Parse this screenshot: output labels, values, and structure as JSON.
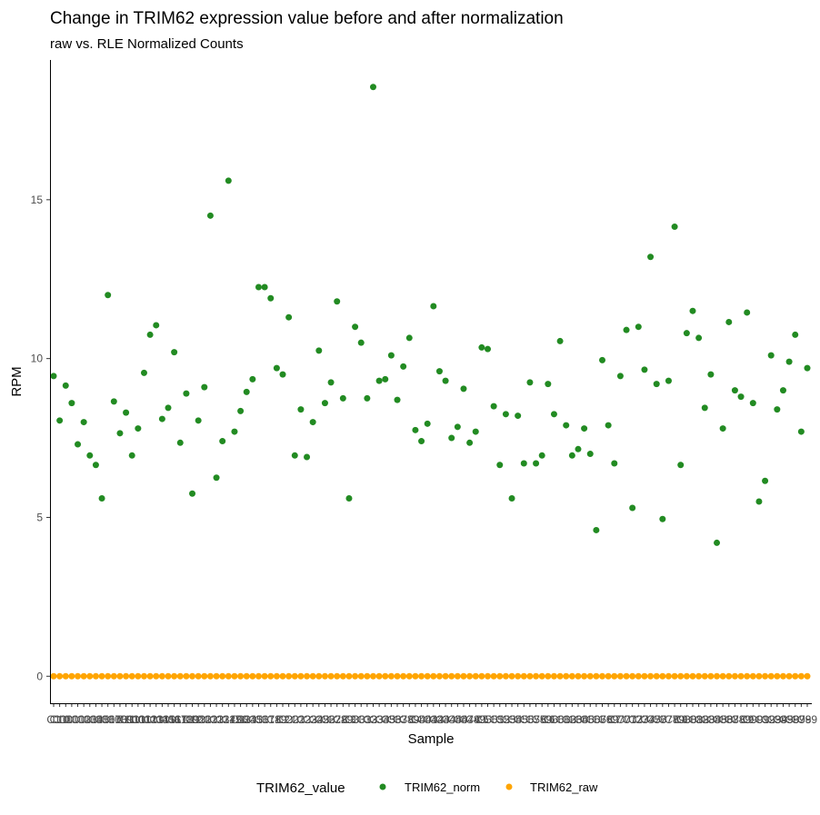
{
  "chart_data": {
    "type": "scatter",
    "title": "Change in TRIM62 expression value before and after normalization",
    "subtitle": "raw vs. RLE Normalized Counts",
    "xlabel": "Sample",
    "ylabel": "RPM",
    "ylim": [
      -0.85,
      19.4
    ],
    "yticks": [
      0,
      5,
      10,
      15
    ],
    "grid": false,
    "legend": {
      "title": "TRIM62_value",
      "position": "bottom"
    },
    "series": [
      {
        "name": "TRIM62_norm",
        "color": "#228B22",
        "values": [
          9.45,
          8.05,
          9.15,
          8.6,
          7.3,
          8.0,
          6.95,
          6.65,
          5.6,
          12.0,
          8.65,
          7.65,
          8.3,
          6.95,
          7.8,
          9.55,
          10.75,
          11.05,
          8.1,
          8.45,
          10.2,
          7.35,
          8.9,
          5.75,
          8.05,
          9.1,
          14.5,
          6.25,
          7.4,
          15.6,
          7.7,
          8.35,
          8.95,
          9.35,
          12.25,
          12.25,
          11.9,
          9.7,
          9.5,
          11.3,
          6.95,
          8.4,
          6.9,
          8.0,
          10.25,
          8.6,
          9.25,
          11.8,
          8.75,
          5.6,
          11.0,
          10.5,
          8.75,
          18.55,
          9.3,
          9.35,
          10.1,
          8.7,
          9.75,
          10.65,
          7.75,
          7.4,
          7.95,
          11.65,
          9.6,
          9.3,
          7.5,
          7.85,
          9.05,
          7.35,
          7.7,
          10.35,
          10.3,
          8.5,
          6.65,
          8.25,
          5.6,
          8.2,
          6.7,
          9.25,
          6.7,
          6.95,
          9.2,
          8.25,
          10.55,
          7.9,
          6.95,
          7.15,
          7.8,
          7.0,
          4.6,
          9.95,
          7.9,
          6.7,
          9.45,
          10.9,
          5.3,
          11.0,
          9.65,
          13.2,
          9.2,
          4.95,
          9.3,
          14.15,
          6.65,
          10.8,
          11.5,
          10.65,
          8.45,
          9.5,
          4.2,
          7.8,
          11.15,
          9.0,
          8.8,
          11.45,
          8.6,
          5.5,
          6.15,
          10.1,
          8.4,
          9.0,
          9.9,
          10.75,
          7.7,
          9.7
        ]
      },
      {
        "name": "TRIM62_raw",
        "color": "#FFA500",
        "values": [
          0,
          0,
          0,
          0,
          0,
          0,
          0,
          0,
          0,
          0,
          0,
          0,
          0,
          0,
          0,
          0,
          0,
          0,
          0,
          0,
          0,
          0,
          0,
          0,
          0,
          0,
          0,
          0,
          0,
          0,
          0,
          0,
          0,
          0,
          0,
          0,
          0,
          0,
          0,
          0,
          0,
          0,
          0,
          0,
          0,
          0,
          0,
          0,
          0,
          0,
          0,
          0,
          0,
          0,
          0,
          0,
          0,
          0,
          0,
          0,
          0,
          0,
          0,
          0,
          0,
          0,
          0,
          0,
          0,
          0,
          0,
          0,
          0,
          0,
          0,
          0,
          0,
          0,
          0,
          0,
          0,
          0,
          0,
          0,
          0,
          0,
          0,
          0,
          0,
          0,
          0,
          0,
          0,
          0,
          0,
          0,
          0,
          0,
          0,
          0,
          0,
          0,
          0,
          0,
          0,
          0,
          0,
          0,
          0,
          0,
          0,
          0,
          0,
          0,
          0,
          0,
          0,
          0,
          0,
          0,
          0,
          0,
          0,
          0,
          0,
          0
        ]
      }
    ],
    "x_tick_labels": [
      "C1",
      "C10",
      "C100",
      "C101",
      "C102",
      "C103",
      "C104",
      "C105",
      "C106",
      "C107",
      "C108",
      "C109",
      "C11",
      "C110",
      "C111",
      "C112",
      "C113",
      "C114",
      "C115",
      "C116",
      "C117",
      "C118",
      "C119",
      "C12",
      "C120",
      "C121",
      "C122",
      "C123",
      "C124",
      "C125",
      "C126",
      "C13",
      "C14",
      "C15",
      "C16",
      "C17",
      "C18",
      "C19",
      "C2",
      "C20",
      "C21",
      "C22",
      "C23",
      "C24",
      "C25",
      "C26",
      "C27",
      "C28",
      "C29",
      "C3",
      "C30",
      "C31",
      "C32",
      "C33",
      "C34",
      "C35",
      "C36",
      "C37",
      "C38",
      "C39",
      "C4",
      "C40",
      "C41",
      "C42",
      "C43",
      "C44",
      "C45",
      "C46",
      "C47",
      "C48",
      "C49",
      "C5",
      "C50",
      "C51",
      "C52",
      "C53",
      "C54",
      "C55",
      "C56",
      "C57",
      "C58",
      "C59",
      "C6",
      "C60",
      "C61",
      "C62",
      "C63",
      "C64",
      "C65",
      "C66",
      "C67",
      "C68",
      "C69",
      "C7",
      "C70",
      "C71",
      "C72",
      "C73",
      "C74",
      "C75",
      "C76",
      "C77",
      "C78",
      "C79",
      "C8",
      "C80",
      "C81",
      "C82",
      "C83",
      "C84",
      "C85",
      "C86",
      "C87",
      "C88",
      "C89",
      "C9",
      "C90",
      "C91",
      "C92",
      "C93",
      "C94",
      "C95",
      "C96",
      "C97",
      "C98",
      "C99"
    ]
  }
}
